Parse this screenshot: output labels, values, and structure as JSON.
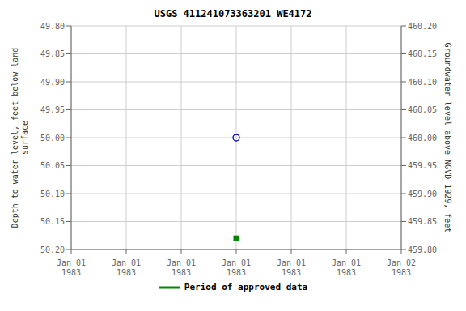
{
  "chart_data": {
    "type": "scatter",
    "title": "USGS 411241073363201 WE4172",
    "y_label": "Depth to water level, feet below land\n surface",
    "y2_label": "Groundwater level above NGVD 1929, feet",
    "categories": [
      "Jan 01\n1983",
      "Jan 01\n1983",
      "Jan 01\n1983",
      "Jan 01\n1983",
      "Jan 01\n1983",
      "Jan 01\n1983",
      "Jan 02\n1983"
    ],
    "series": [
      {
        "color": "#0000cc",
        "marker": "circle",
        "values": [
          null,
          null,
          null,
          50.0,
          null,
          null,
          null
        ]
      },
      {
        "name": "Period of approved data",
        "color": "#008800",
        "marker": "square",
        "values": [
          null,
          null,
          null,
          50.18,
          null,
          null,
          null
        ]
      }
    ],
    "ylim": [
      50.2,
      49.8
    ],
    "yticks": [
      {
        "value": 49.8,
        "label": "49.80"
      },
      {
        "value": 49.85,
        "label": "49.85"
      },
      {
        "value": 49.9,
        "label": "49.90"
      },
      {
        "value": 49.95,
        "label": "49.95"
      },
      {
        "value": 50.0,
        "label": "50.00"
      },
      {
        "value": 50.05,
        "label": "50.05"
      },
      {
        "value": 50.1,
        "label": "50.10"
      },
      {
        "value": 50.15,
        "label": "50.15"
      },
      {
        "value": 50.2,
        "label": "50.20"
      }
    ],
    "y2lim": [
      459.8,
      460.2
    ],
    "y2ticks": [
      {
        "value": 460.2,
        "label": "460.20"
      },
      {
        "value": 460.15,
        "label": "460.15"
      },
      {
        "value": 460.1,
        "label": "460.10"
      },
      {
        "value": 460.05,
        "label": "460.05"
      },
      {
        "value": 460.0,
        "label": "460.00"
      },
      {
        "value": 459.95,
        "label": "459.95"
      },
      {
        "value": 459.9,
        "label": "459.90"
      },
      {
        "value": 459.85,
        "label": "459.85"
      },
      {
        "value": 459.8,
        "label": "459.80"
      }
    ],
    "grid": true,
    "legend": "bottom"
  }
}
